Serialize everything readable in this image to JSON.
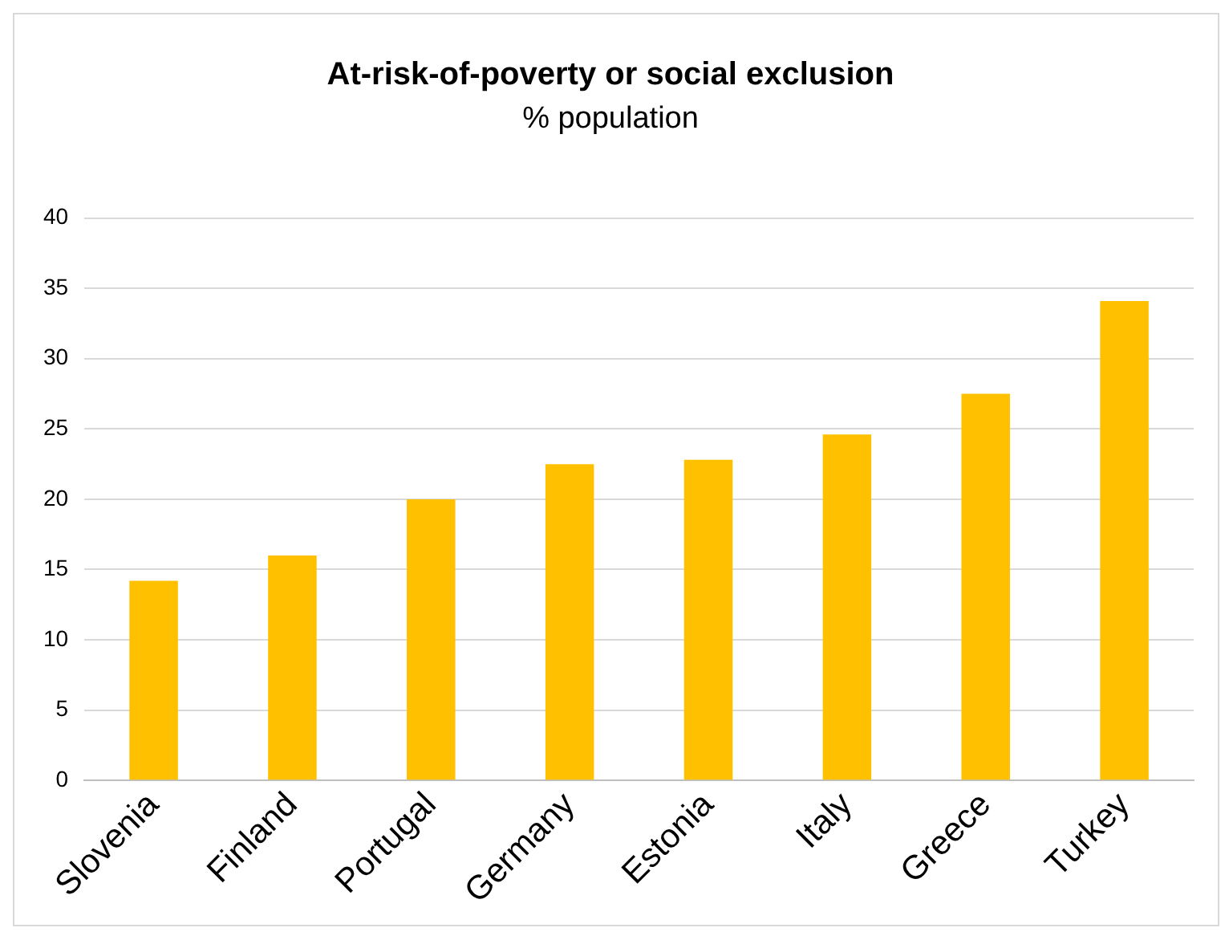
{
  "chart_data": {
    "type": "bar",
    "title": "At-risk-of-poverty or social exclusion",
    "subtitle": "% population",
    "categories": [
      "Slovenia",
      "Finland",
      "Portugal",
      "Germany",
      "Estonia",
      "Italy",
      "Greece",
      "Turkey"
    ],
    "values": [
      14.2,
      16.0,
      20.0,
      22.5,
      22.8,
      24.6,
      27.5,
      34.1
    ],
    "color": "#ffc000",
    "ylim": [
      0,
      40
    ],
    "yticks": [
      0,
      5,
      10,
      15,
      20,
      25,
      30,
      35,
      40
    ],
    "grid": "y",
    "legend": false
  }
}
